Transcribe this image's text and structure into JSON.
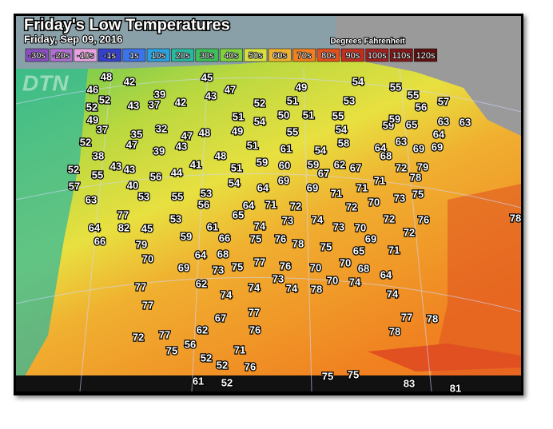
{
  "header": {
    "title": "Friday's Low Temperatures",
    "date": "Friday, Sep 09, 2016",
    "units": "Degrees Fahrenheit"
  },
  "logo": "DTN",
  "legend": [
    {
      "label": "-30s",
      "color": "#8a4fbf"
    },
    {
      "label": "-20s",
      "color": "#b071d2"
    },
    {
      "label": "-10s",
      "color": "#eaa3e2"
    },
    {
      "label": "-1s",
      "color": "#3540c8"
    },
    {
      "label": "1s",
      "color": "#3a74e8"
    },
    {
      "label": "10s",
      "color": "#2aa2e0"
    },
    {
      "label": "20s",
      "color": "#2ab8a0"
    },
    {
      "label": "30s",
      "color": "#3fbf5a"
    },
    {
      "label": "40s",
      "color": "#80d040"
    },
    {
      "label": "50s",
      "color": "#d8e040"
    },
    {
      "label": "60s",
      "color": "#f0b030"
    },
    {
      "label": "70s",
      "color": "#f08020"
    },
    {
      "label": "80s",
      "color": "#e05020"
    },
    {
      "label": "90s",
      "color": "#c03020"
    },
    {
      "label": "100s",
      "color": "#a02020"
    },
    {
      "label": "110s",
      "color": "#801818"
    },
    {
      "label": "120s",
      "color": "#601010"
    }
  ],
  "temperatures": [
    48,
    42,
    45,
    47,
    49,
    54,
    55,
    55,
    57,
    46,
    52,
    39,
    42,
    43,
    52,
    51,
    53,
    56,
    52,
    43,
    37,
    63,
    63,
    64,
    49,
    51,
    54,
    50,
    51,
    55,
    59,
    65,
    59,
    37,
    35,
    32,
    47,
    48,
    49,
    55,
    54,
    52,
    47,
    43,
    51,
    61,
    54,
    58,
    64,
    63,
    69,
    69,
    38,
    39,
    48,
    68,
    43,
    43,
    41,
    51,
    59,
    60,
    59,
    62,
    67,
    72,
    79,
    52,
    55,
    56,
    44,
    67,
    78,
    57,
    40,
    54,
    64,
    69,
    69,
    71,
    71,
    71,
    63,
    53,
    55,
    53,
    56,
    71,
    72,
    73,
    75,
    64,
    65,
    72,
    70,
    77,
    53,
    74,
    73,
    74,
    72,
    76,
    78,
    64,
    82,
    45,
    61,
    73,
    70,
    72,
    66,
    79,
    59,
    66,
    75,
    76,
    78,
    75,
    69,
    64,
    68,
    65,
    71,
    70,
    69,
    73,
    75,
    77,
    76,
    70,
    70,
    68,
    73,
    70,
    74,
    64,
    77,
    62,
    74,
    74,
    74,
    78,
    74,
    77,
    77,
    67,
    77,
    78,
    62,
    76,
    78,
    72,
    77,
    75,
    56,
    71,
    52,
    76,
    52,
    75,
    75,
    83,
    61,
    52,
    81
  ]
}
